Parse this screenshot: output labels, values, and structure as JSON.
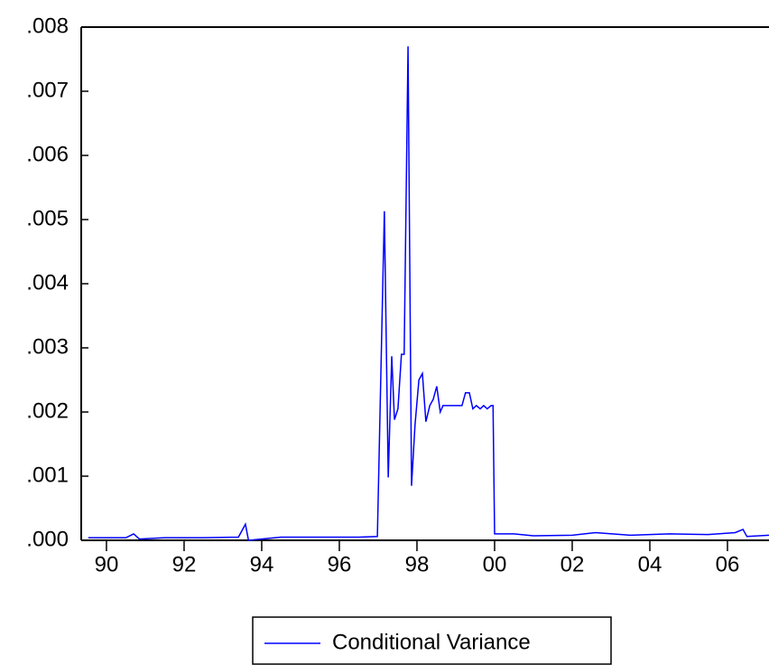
{
  "chart_data": {
    "type": "line",
    "x": [
      1989.53,
      1990.5,
      1990.7,
      1990.85,
      1991.5,
      1992.5,
      1993.4,
      1993.58,
      1993.66,
      1994.5,
      1995.5,
      1996.5,
      1996.98,
      1997.16,
      1997.26,
      1997.35,
      1997.42,
      1997.51,
      1997.6,
      1997.67,
      1997.77,
      1997.86,
      1997.95,
      1998.05,
      1998.14,
      1998.23,
      1998.33,
      1998.42,
      1998.51,
      1998.6,
      1998.67,
      1998.9,
      1999.16,
      1999.25,
      1999.35,
      1999.44,
      1999.53,
      1999.63,
      1999.72,
      1999.81,
      1999.91,
      1999.96,
      2000.0,
      2000.5,
      2001.0,
      2002.0,
      2002.6,
      2003.5,
      2004.5,
      2005.5,
      2006.2,
      2006.4,
      2006.5,
      2007.07
    ],
    "series": [
      {
        "name": "Conditional Variance",
        "color": "#0000ff",
        "values": [
          4e-05,
          4e-05,
          0.0001,
          2e-05,
          4e-05,
          4e-05,
          5e-05,
          0.00025,
          0.0,
          5e-05,
          5e-05,
          5e-05,
          6e-05,
          0.00513,
          0.00098,
          0.00287,
          0.00188,
          0.00205,
          0.0029,
          0.0029,
          0.0077,
          0.00085,
          0.0018,
          0.0025,
          0.0026,
          0.00185,
          0.0021,
          0.0022,
          0.0024,
          0.002,
          0.0021,
          0.0021,
          0.0021,
          0.0023,
          0.0023,
          0.00205,
          0.0021,
          0.00205,
          0.0021,
          0.00205,
          0.0021,
          0.0021,
          0.0001,
          0.0001,
          7e-05,
          8e-05,
          0.00012,
          8e-05,
          0.0001,
          9e-05,
          0.00012,
          0.00017,
          6e-05,
          8e-05
        ]
      }
    ],
    "xlim": [
      1989.35,
      2007.07
    ],
    "xticks": [
      {
        "value": 1990,
        "label": "90"
      },
      {
        "value": 1992,
        "label": "92"
      },
      {
        "value": 1994,
        "label": "94"
      },
      {
        "value": 1996,
        "label": "96"
      },
      {
        "value": 1998,
        "label": "98"
      },
      {
        "value": 2000,
        "label": "00"
      },
      {
        "value": 2002,
        "label": "02"
      },
      {
        "value": 2004,
        "label": "04"
      },
      {
        "value": 2006,
        "label": "06"
      }
    ],
    "ylim": [
      0,
      0.008
    ],
    "yticks": [
      {
        "value": 0,
        "label": ".000"
      },
      {
        "value": 0.001,
        "label": ".001"
      },
      {
        "value": 0.002,
        "label": ".002"
      },
      {
        "value": 0.003,
        "label": ".003"
      },
      {
        "value": 0.004,
        "label": ".004"
      },
      {
        "value": 0.005,
        "label": ".005"
      },
      {
        "value": 0.006,
        "label": ".006"
      },
      {
        "value": 0.007,
        "label": ".007"
      },
      {
        "value": 0.008,
        "label": ".008"
      }
    ]
  }
}
